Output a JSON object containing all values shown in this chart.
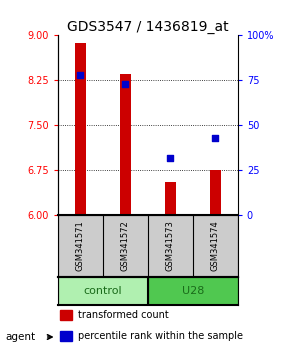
{
  "title": "GDS3547 / 1436819_at",
  "samples": [
    "GSM341571",
    "GSM341572",
    "GSM341573",
    "GSM341574"
  ],
  "bar_values": [
    8.87,
    8.35,
    6.55,
    6.75
  ],
  "bar_color": "#cc0000",
  "bar_bottom": 6.0,
  "percentile_values": [
    78,
    73,
    32,
    43
  ],
  "percentile_color": "#0000cc",
  "ylim_left": [
    6.0,
    9.0
  ],
  "ylim_right": [
    0,
    100
  ],
  "yticks_left": [
    6,
    6.75,
    7.5,
    8.25,
    9
  ],
  "yticks_right": [
    0,
    25,
    50,
    75,
    100
  ],
  "ytick_labels_right": [
    "0",
    "25",
    "50",
    "75",
    "100%"
  ],
  "hlines": [
    6.75,
    7.5,
    8.25
  ],
  "groups": [
    {
      "label": "control",
      "indices": [
        0,
        1
      ],
      "color": "#b0f0b0"
    },
    {
      "label": "U28",
      "indices": [
        2,
        3
      ],
      "color": "#50c850"
    }
  ],
  "agent_label": "agent",
  "legend_items": [
    {
      "label": "transformed count",
      "color": "#cc0000"
    },
    {
      "label": "percentile rank within the sample",
      "color": "#0000cc"
    }
  ],
  "bar_width": 0.25,
  "title_fontsize": 10,
  "tick_fontsize": 7,
  "sample_fontsize": 6,
  "group_label_fontsize": 8,
  "legend_fontsize": 7
}
